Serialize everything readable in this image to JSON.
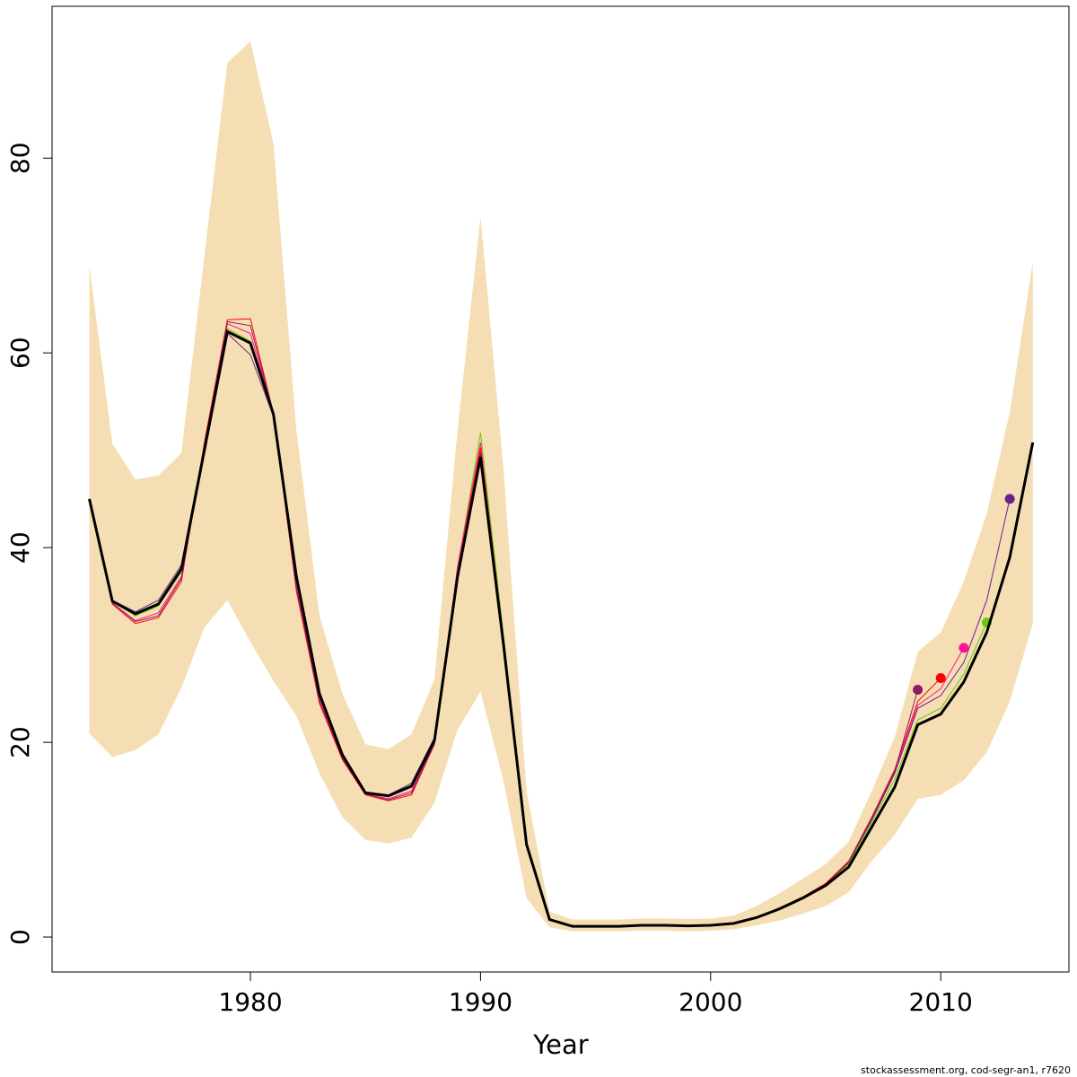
{
  "chart_data": {
    "type": "line",
    "xlabel": "Year",
    "footer": "stockassessment.org, cod-segr-an1, r7620",
    "x": [
      1973,
      1974,
      1975,
      1976,
      1977,
      1978,
      1979,
      1980,
      1981,
      1982,
      1983,
      1984,
      1985,
      1986,
      1987,
      1988,
      1989,
      1990,
      1991,
      1992,
      1993,
      1994,
      1995,
      1996,
      1997,
      1998,
      1999,
      2000,
      2001,
      2002,
      2003,
      2004,
      2005,
      2006,
      2007,
      2008,
      2009,
      2010,
      2011,
      2012,
      2013,
      2014
    ],
    "band": {
      "color": "#f5deb3",
      "upper": [
        69,
        50.7,
        47,
        47.4,
        49.7,
        70,
        89.8,
        92,
        81.5,
        52,
        33,
        25,
        19.8,
        19.3,
        20.8,
        26.5,
        52,
        74,
        48,
        15,
        2.6,
        1.8,
        1.8,
        1.8,
        1.9,
        1.9,
        1.85,
        1.9,
        2.2,
        3.2,
        4.5,
        6,
        7.5,
        9.8,
        15,
        20.5,
        29.3,
        31.3,
        36.5,
        43.5,
        53.9,
        69.3
      ],
      "lower": [
        20.9,
        18.5,
        19.2,
        20.8,
        25.6,
        31.8,
        34.6,
        30.3,
        26.3,
        22.7,
        16.8,
        12.3,
        10,
        9.6,
        10.2,
        13.8,
        21.3,
        25.2,
        16,
        4,
        1,
        0.6,
        0.6,
        0.6,
        0.65,
        0.65,
        0.6,
        0.65,
        0.8,
        1.2,
        1.7,
        2.4,
        3.2,
        4.6,
        7.8,
        10.5,
        14.2,
        14.6,
        16.1,
        19,
        24.2,
        32.2
      ]
    },
    "series": [
      {
        "color": "#68228B",
        "values": [
          45,
          34.6,
          33.4,
          34.6,
          38.2,
          50.5,
          62,
          59.8,
          53.5,
          36.5,
          25,
          18.8,
          14.9,
          14.6,
          15.8,
          20.5,
          37.5,
          49.5,
          30.5,
          9.5,
          1.8,
          1.1,
          1.1,
          1.1,
          1.2,
          1.2,
          1.15,
          1.2,
          1.4,
          2,
          3,
          4.1,
          5.5,
          7.6,
          12,
          16.8,
          23.5,
          24.8,
          28.2,
          34.6,
          45,
          null
        ]
      },
      {
        "color": "#66CD00",
        "values": [
          45,
          34.5,
          33,
          34,
          37.5,
          50.3,
          62.5,
          61.2,
          53.7,
          36.8,
          25,
          18.7,
          14.8,
          14.4,
          15.4,
          20.3,
          37.8,
          51.8,
          31,
          9.6,
          1.8,
          1.1,
          1.1,
          1.1,
          1.2,
          1.2,
          1.15,
          1.2,
          1.4,
          2,
          3,
          4.1,
          5.4,
          7.5,
          11.8,
          16.2,
          22.3,
          23.5,
          27,
          32.3,
          null,
          null
        ]
      },
      {
        "color": "#FF1493",
        "values": [
          45,
          34.3,
          32.5,
          33.3,
          37,
          50.5,
          63,
          62,
          53.8,
          36,
          24.5,
          18.4,
          14.7,
          14.2,
          15,
          20,
          38,
          50.8,
          30.5,
          9.4,
          1.8,
          1.1,
          1.1,
          1.1,
          1.2,
          1.2,
          1.15,
          1.2,
          1.4,
          2,
          3,
          4.1,
          5.5,
          7.7,
          12.2,
          17,
          23.8,
          25.5,
          29.7,
          null,
          null,
          null
        ]
      },
      {
        "color": "#FF0000",
        "values": [
          45,
          34.2,
          32.2,
          32.8,
          36.5,
          50.8,
          63.4,
          63.5,
          53.8,
          35.5,
          24,
          18.2,
          14.6,
          14,
          14.6,
          19.8,
          37.5,
          50.3,
          30,
          9.3,
          1.8,
          1.1,
          1.1,
          1.1,
          1.2,
          1.2,
          1.15,
          1.2,
          1.4,
          2,
          3,
          4.1,
          5.5,
          7.8,
          12.3,
          17.2,
          24.2,
          26.6,
          null,
          null,
          null,
          null
        ]
      },
      {
        "color": "#8B1C62",
        "values": [
          45,
          34.3,
          32.4,
          33,
          36.8,
          50.5,
          63.2,
          62.8,
          53.8,
          35.8,
          24.3,
          18.3,
          14.7,
          14.1,
          14.8,
          19.9,
          37.3,
          49.8,
          29.8,
          9.2,
          1.8,
          1.1,
          1.1,
          1.1,
          1.2,
          1.2,
          1.15,
          1.2,
          1.4,
          2,
          3,
          4,
          5.4,
          7.7,
          12.2,
          17,
          25.4,
          null,
          null,
          null,
          null,
          null
        ]
      },
      {
        "color": "#000000",
        "values": [
          45,
          34.5,
          33.2,
          34.2,
          37.8,
          50,
          62.2,
          61,
          53.7,
          37,
          25,
          18.7,
          14.8,
          14.5,
          15.5,
          20.2,
          37,
          49.3,
          30,
          9.5,
          1.8,
          1.1,
          1.1,
          1.1,
          1.2,
          1.2,
          1.15,
          1.2,
          1.4,
          2,
          2.9,
          4,
          5.3,
          7.2,
          11.3,
          15.4,
          21.8,
          22.9,
          26.2,
          31.3,
          39,
          50.8
        ]
      }
    ],
    "xlim": [
      1971.38,
      2015.57
    ],
    "ylim": [
      -3.59,
      95.6
    ],
    "xticks": [
      1980,
      1990,
      2000,
      2010
    ],
    "yticks": [
      0,
      20,
      40,
      60,
      80
    ],
    "grid": false
  }
}
